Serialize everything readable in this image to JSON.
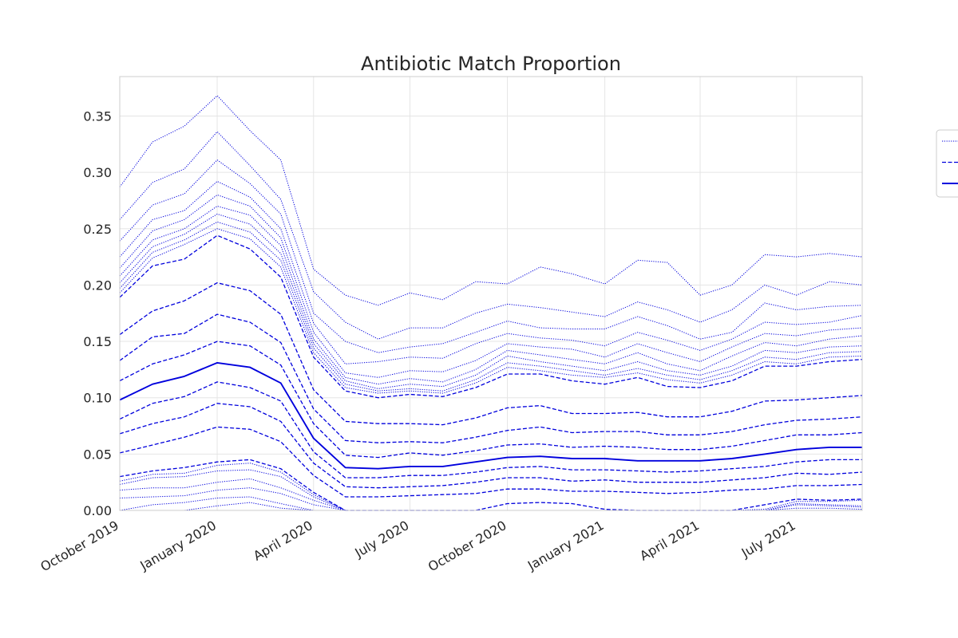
{
  "chart_data": {
    "type": "line",
    "title": "Antibiotic Match Proportion",
    "xlabel": "",
    "ylabel": "",
    "x_range": [
      "2019-10-01",
      "2021-09-01"
    ],
    "ylim": [
      0,
      0.385
    ],
    "grid": true,
    "legend": {
      "position": "right",
      "entries": [
        "",
        "",
        ""
      ],
      "styles": [
        "dotted",
        "dashed",
        "solid"
      ]
    },
    "color": "#0000dd",
    "x_ticks": [
      {
        "date": "2019-10-01",
        "label": "October 2019"
      },
      {
        "date": "2020-01-01",
        "label": "January 2020"
      },
      {
        "date": "2020-04-01",
        "label": "April 2020"
      },
      {
        "date": "2020-07-01",
        "label": "July 2020"
      },
      {
        "date": "2020-10-01",
        "label": "October 2020"
      },
      {
        "date": "2021-01-01",
        "label": "January 2021"
      },
      {
        "date": "2021-04-01",
        "label": "April 2021"
      },
      {
        "date": "2021-07-01",
        "label": "July 2021"
      }
    ],
    "y_ticks": [
      {
        "value": 0.0,
        "label": "0.00"
      },
      {
        "value": 0.05,
        "label": "0.05"
      },
      {
        "value": 0.1,
        "label": "0.10"
      },
      {
        "value": 0.15,
        "label": "0.15"
      },
      {
        "value": 0.2,
        "label": "0.20"
      },
      {
        "value": 0.25,
        "label": "0.25"
      },
      {
        "value": 0.3,
        "label": "0.30"
      },
      {
        "value": 0.35,
        "label": "0.35"
      }
    ],
    "x": [
      "2019-10-01",
      "2019-11-01",
      "2019-12-01",
      "2020-01-01",
      "2020-02-01",
      "2020-03-01",
      "2020-04-01",
      "2020-05-01",
      "2020-06-01",
      "2020-07-01",
      "2020-08-01",
      "2020-09-01",
      "2020-10-01",
      "2020-11-01",
      "2020-12-01",
      "2021-01-01",
      "2021-02-01",
      "2021-03-01",
      "2021-04-01",
      "2021-05-01",
      "2021-06-01",
      "2021-07-01",
      "2021-08-01",
      "2021-09-01"
    ],
    "series": [
      {
        "style": "dotted",
        "values": [
          0.287,
          0.327,
          0.341,
          0.368,
          0.337,
          0.311,
          0.214,
          0.191,
          0.182,
          0.193,
          0.187,
          0.203,
          0.201,
          0.216,
          0.21,
          0.201,
          0.222,
          0.22,
          0.191,
          0.2,
          0.227,
          0.225,
          0.228,
          0.225
        ]
      },
      {
        "style": "dotted",
        "values": [
          0.258,
          0.291,
          0.303,
          0.336,
          0.306,
          0.276,
          0.194,
          0.167,
          0.152,
          0.162,
          0.162,
          0.175,
          0.183,
          0.18,
          0.176,
          0.172,
          0.185,
          0.178,
          0.167,
          0.178,
          0.2,
          0.191,
          0.203,
          0.2
        ]
      },
      {
        "style": "dotted",
        "values": [
          0.239,
          0.271,
          0.281,
          0.311,
          0.29,
          0.263,
          0.175,
          0.15,
          0.14,
          0.145,
          0.148,
          0.158,
          0.168,
          0.162,
          0.161,
          0.161,
          0.172,
          0.164,
          0.152,
          0.158,
          0.184,
          0.178,
          0.181,
          0.182
        ]
      },
      {
        "style": "dotted",
        "values": [
          0.225,
          0.258,
          0.266,
          0.292,
          0.278,
          0.25,
          0.166,
          0.13,
          0.132,
          0.136,
          0.135,
          0.148,
          0.157,
          0.153,
          0.151,
          0.146,
          0.158,
          0.151,
          0.142,
          0.152,
          0.167,
          0.165,
          0.167,
          0.173
        ]
      },
      {
        "style": "dotted",
        "values": [
          0.215,
          0.248,
          0.258,
          0.28,
          0.27,
          0.242,
          0.158,
          0.122,
          0.118,
          0.124,
          0.123,
          0.133,
          0.148,
          0.145,
          0.143,
          0.136,
          0.148,
          0.14,
          0.132,
          0.145,
          0.157,
          0.155,
          0.16,
          0.162
        ]
      },
      {
        "style": "dotted",
        "values": [
          0.208,
          0.24,
          0.25,
          0.27,
          0.262,
          0.235,
          0.152,
          0.118,
          0.112,
          0.117,
          0.114,
          0.125,
          0.142,
          0.138,
          0.134,
          0.13,
          0.14,
          0.13,
          0.124,
          0.137,
          0.149,
          0.146,
          0.152,
          0.155
        ]
      },
      {
        "style": "dotted",
        "values": [
          0.202,
          0.234,
          0.245,
          0.263,
          0.254,
          0.228,
          0.148,
          0.115,
          0.108,
          0.112,
          0.11,
          0.12,
          0.137,
          0.132,
          0.128,
          0.124,
          0.132,
          0.124,
          0.12,
          0.128,
          0.142,
          0.14,
          0.145,
          0.146
        ]
      },
      {
        "style": "dotted",
        "values": [
          0.197,
          0.229,
          0.24,
          0.256,
          0.247,
          0.222,
          0.144,
          0.112,
          0.106,
          0.108,
          0.106,
          0.116,
          0.131,
          0.128,
          0.124,
          0.12,
          0.126,
          0.12,
          0.116,
          0.124,
          0.136,
          0.134,
          0.14,
          0.141
        ]
      },
      {
        "style": "dotted",
        "values": [
          0.193,
          0.224,
          0.236,
          0.25,
          0.241,
          0.216,
          0.14,
          0.109,
          0.104,
          0.106,
          0.104,
          0.113,
          0.127,
          0.124,
          0.12,
          0.118,
          0.122,
          0.116,
          0.113,
          0.12,
          0.132,
          0.13,
          0.136,
          0.137
        ]
      },
      {
        "style": "dashed",
        "values": [
          0.189,
          0.217,
          0.223,
          0.244,
          0.232,
          0.207,
          0.136,
          0.106,
          0.1,
          0.103,
          0.101,
          0.109,
          0.121,
          0.121,
          0.115,
          0.112,
          0.118,
          0.11,
          0.109,
          0.115,
          0.128,
          0.128,
          0.132,
          0.134
        ]
      },
      {
        "style": "dashed",
        "values": [
          0.156,
          0.177,
          0.186,
          0.202,
          0.195,
          0.174,
          0.107,
          0.079,
          0.077,
          0.077,
          0.076,
          0.082,
          0.091,
          0.093,
          0.086,
          0.086,
          0.087,
          0.083,
          0.083,
          0.088,
          0.097,
          0.098,
          0.1,
          0.102
        ]
      },
      {
        "style": "dashed",
        "values": [
          0.133,
          0.154,
          0.157,
          0.174,
          0.167,
          0.149,
          0.09,
          0.062,
          0.06,
          0.061,
          0.06,
          0.065,
          0.071,
          0.074,
          0.069,
          0.07,
          0.07,
          0.067,
          0.067,
          0.07,
          0.076,
          0.08,
          0.081,
          0.083
        ]
      },
      {
        "style": "solid",
        "values": [
          0.098,
          0.112,
          0.119,
          0.131,
          0.127,
          0.113,
          0.064,
          0.038,
          0.037,
          0.039,
          0.039,
          0.043,
          0.047,
          0.048,
          0.046,
          0.046,
          0.044,
          0.044,
          0.044,
          0.046,
          0.05,
          0.054,
          0.056,
          0.056
        ]
      },
      {
        "style": "dashed",
        "values": [
          0.115,
          0.13,
          0.138,
          0.15,
          0.146,
          0.129,
          0.077,
          0.049,
          0.047,
          0.051,
          0.049,
          0.053,
          0.058,
          0.059,
          0.056,
          0.057,
          0.056,
          0.054,
          0.054,
          0.057,
          0.062,
          0.067,
          0.067,
          0.069
        ]
      },
      {
        "style": "dashed",
        "values": [
          0.081,
          0.095,
          0.101,
          0.114,
          0.109,
          0.097,
          0.052,
          0.029,
          0.029,
          0.031,
          0.031,
          0.034,
          0.038,
          0.039,
          0.036,
          0.036,
          0.035,
          0.034,
          0.035,
          0.037,
          0.039,
          0.043,
          0.045,
          0.045
        ]
      },
      {
        "style": "dashed",
        "values": [
          0.068,
          0.077,
          0.083,
          0.095,
          0.092,
          0.079,
          0.042,
          0.021,
          0.02,
          0.021,
          0.022,
          0.025,
          0.029,
          0.029,
          0.026,
          0.027,
          0.025,
          0.025,
          0.025,
          0.027,
          0.029,
          0.033,
          0.032,
          0.034
        ]
      },
      {
        "style": "dashed",
        "values": [
          0.051,
          0.058,
          0.065,
          0.074,
          0.072,
          0.061,
          0.031,
          0.012,
          0.012,
          0.013,
          0.014,
          0.015,
          0.019,
          0.019,
          0.017,
          0.017,
          0.016,
          0.015,
          0.016,
          0.018,
          0.019,
          0.022,
          0.022,
          0.023
        ]
      },
      {
        "style": "dashed",
        "values": [
          0.03,
          0.035,
          0.038,
          0.043,
          0.045,
          0.037,
          0.016,
          0.0,
          0.0,
          0.0,
          0.0,
          0.0,
          0.006,
          0.007,
          0.006,
          0.001,
          0.0,
          0.0,
          0.0,
          0.0,
          0.005,
          0.01,
          0.009,
          0.01
        ]
      },
      {
        "style": "dotted",
        "values": [
          0.026,
          0.032,
          0.033,
          0.04,
          0.042,
          0.034,
          0.014,
          0.0,
          0.0,
          0.0,
          0.0,
          0.0,
          0.0,
          0.0,
          0.0,
          0.0,
          0.0,
          0.0,
          0.0,
          0.0,
          0.001,
          0.008,
          0.008,
          0.009
        ]
      },
      {
        "style": "dotted",
        "values": [
          0.023,
          0.029,
          0.03,
          0.035,
          0.036,
          0.03,
          0.012,
          0.0,
          0.0,
          0.0,
          0.0,
          0.0,
          0.0,
          0.0,
          0.0,
          0.0,
          0.0,
          0.0,
          0.0,
          0.0,
          0.0,
          0.006,
          0.005,
          0.004
        ]
      },
      {
        "style": "dotted",
        "values": [
          0.018,
          0.02,
          0.02,
          0.025,
          0.028,
          0.02,
          0.009,
          0.0,
          0.0,
          0.0,
          0.0,
          0.0,
          0.0,
          0.0,
          0.0,
          0.0,
          0.0,
          0.0,
          0.0,
          0.0,
          0.0,
          0.005,
          0.004,
          0.003
        ]
      },
      {
        "style": "dotted",
        "values": [
          0.011,
          0.012,
          0.013,
          0.018,
          0.02,
          0.015,
          0.005,
          0.0,
          0.0,
          0.0,
          0.0,
          0.0,
          0.0,
          0.0,
          0.0,
          0.0,
          0.0,
          0.0,
          0.0,
          0.0,
          0.0,
          0.002,
          0.002,
          0.001
        ]
      },
      {
        "style": "dotted",
        "values": [
          0.0,
          0.005,
          0.007,
          0.011,
          0.012,
          0.006,
          0.0,
          0.0,
          0.0,
          0.0,
          0.0,
          0.0,
          0.0,
          0.0,
          0.0,
          0.0,
          0.0,
          0.0,
          0.0,
          0.0,
          0.0,
          0.0,
          0.0,
          0.0
        ]
      },
      {
        "style": "dotted",
        "values": [
          0.0,
          0.0,
          0.0,
          0.004,
          0.007,
          0.002,
          0.0,
          0.0,
          0.0,
          0.0,
          0.0,
          0.0,
          0.0,
          0.0,
          0.0,
          0.0,
          0.0,
          0.0,
          0.0,
          0.0,
          0.0,
          0.0,
          0.0,
          0.0
        ]
      }
    ]
  }
}
